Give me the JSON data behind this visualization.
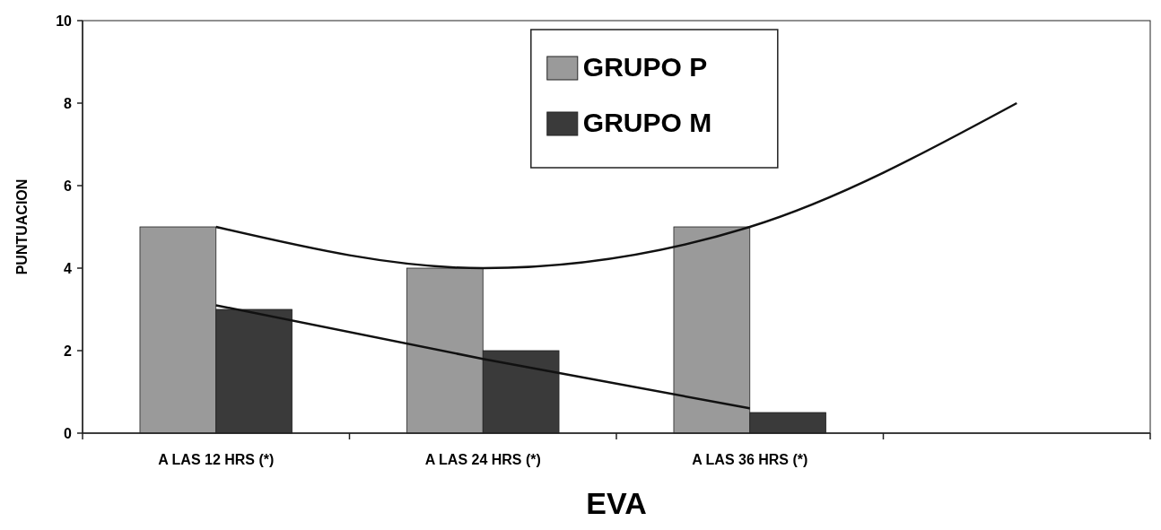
{
  "chart_data": {
    "type": "bar",
    "xlabel": "EVA",
    "ylabel": "PUNTUACION",
    "categories": [
      "A LAS 12 HRS (*)",
      "A LAS 24 HRS (*)",
      "A LAS 36 HRS (*)",
      null
    ],
    "series": [
      {
        "name": "GRUPO P",
        "color": "#9a9a9a",
        "values": [
          5,
          4,
          5,
          null
        ]
      },
      {
        "name": "GRUPO M",
        "color": "#3a3a3a",
        "values": [
          3,
          2,
          0.5,
          null
        ]
      },
      {
        "type": "line",
        "color": "#111111",
        "values": [
          5,
          4,
          5,
          8
        ]
      },
      {
        "type": "line",
        "color": "#111111",
        "values": [
          3.1,
          1.8,
          0.6,
          null
        ]
      }
    ],
    "ylim": [
      0,
      10
    ],
    "yticks": [
      0,
      2,
      4,
      6,
      8,
      10
    ],
    "legend": "top",
    "marker": "none",
    "line_style": "solid"
  }
}
